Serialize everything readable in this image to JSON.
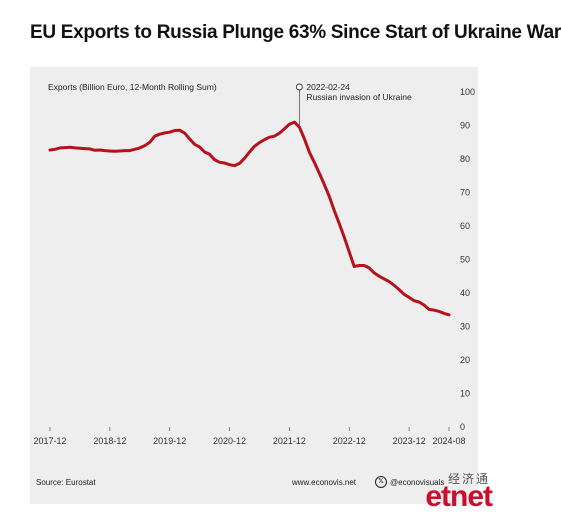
{
  "title": "EU Exports to Russia Plunge 63% Since Start of Ukraine War",
  "footer": {
    "source": "Source: Eurostat",
    "site": "www.econovis.net",
    "handle": "@econovisuals",
    "x_icon": "x-logo-icon"
  },
  "watermark": {
    "top_text": "经济通",
    "logo_text": "etnet",
    "color": "#c8102e"
  },
  "chart_data": {
    "type": "line",
    "ylabel": "Exports (Billion Euro, 12-Month Rolling Sum)",
    "ylim": [
      0,
      100
    ],
    "yticks": [
      0,
      10,
      20,
      30,
      40,
      50,
      60,
      70,
      80,
      90,
      100
    ],
    "xlim": [
      "2017-12",
      "2024-08"
    ],
    "xtick_labels": [
      "2017-12",
      "2018-12",
      "2019-12",
      "2020-12",
      "2021-12",
      "2022-12",
      "2023-12",
      "2024-08"
    ],
    "grid": false,
    "line_color": "#b5121b",
    "annotation": {
      "x": "2022-02",
      "date_label": "2022-02-24",
      "text": "Russian invasion of Ukraine"
    },
    "series": [
      {
        "values": [
          {
            "x": "2017-12",
            "y": 82.7
          },
          {
            "x": "2018-01",
            "y": 82.9
          },
          {
            "x": "2018-02",
            "y": 83.3
          },
          {
            "x": "2018-03",
            "y": 83.4
          },
          {
            "x": "2018-04",
            "y": 83.5
          },
          {
            "x": "2018-05",
            "y": 83.3
          },
          {
            "x": "2018-06",
            "y": 83.2
          },
          {
            "x": "2018-07",
            "y": 83.1
          },
          {
            "x": "2018-08",
            "y": 83.0
          },
          {
            "x": "2018-09",
            "y": 82.6
          },
          {
            "x": "2018-10",
            "y": 82.7
          },
          {
            "x": "2018-11",
            "y": 82.5
          },
          {
            "x": "2018-12",
            "y": 82.4
          },
          {
            "x": "2019-01",
            "y": 82.3
          },
          {
            "x": "2019-02",
            "y": 82.4
          },
          {
            "x": "2019-03",
            "y": 82.5
          },
          {
            "x": "2019-04",
            "y": 82.5
          },
          {
            "x": "2019-05",
            "y": 82.9
          },
          {
            "x": "2019-06",
            "y": 83.3
          },
          {
            "x": "2019-07",
            "y": 84.0
          },
          {
            "x": "2019-08",
            "y": 85.0
          },
          {
            "x": "2019-09",
            "y": 86.8
          },
          {
            "x": "2019-10",
            "y": 87.4
          },
          {
            "x": "2019-11",
            "y": 87.8
          },
          {
            "x": "2019-12",
            "y": 88.0
          },
          {
            "x": "2020-01",
            "y": 88.5
          },
          {
            "x": "2020-02",
            "y": 88.6
          },
          {
            "x": "2020-03",
            "y": 87.7
          },
          {
            "x": "2020-04",
            "y": 86.0
          },
          {
            "x": "2020-05",
            "y": 84.4
          },
          {
            "x": "2020-06",
            "y": 83.6
          },
          {
            "x": "2020-07",
            "y": 82.1
          },
          {
            "x": "2020-08",
            "y": 81.4
          },
          {
            "x": "2020-09",
            "y": 79.8
          },
          {
            "x": "2020-10",
            "y": 79.0
          },
          {
            "x": "2020-11",
            "y": 78.8
          },
          {
            "x": "2020-12",
            "y": 78.3
          },
          {
            "x": "2021-01",
            "y": 78.0
          },
          {
            "x": "2021-02",
            "y": 78.7
          },
          {
            "x": "2021-03",
            "y": 80.2
          },
          {
            "x": "2021-04",
            "y": 82.1
          },
          {
            "x": "2021-05",
            "y": 83.8
          },
          {
            "x": "2021-06",
            "y": 84.9
          },
          {
            "x": "2021-07",
            "y": 85.8
          },
          {
            "x": "2021-08",
            "y": 86.5
          },
          {
            "x": "2021-09",
            "y": 86.8
          },
          {
            "x": "2021-10",
            "y": 87.7
          },
          {
            "x": "2021-11",
            "y": 89.0
          },
          {
            "x": "2021-12",
            "y": 90.4
          },
          {
            "x": "2022-01",
            "y": 91.0
          },
          {
            "x": "2022-02",
            "y": 89.5
          },
          {
            "x": "2022-03",
            "y": 86.0
          },
          {
            "x": "2022-04",
            "y": 82.0
          },
          {
            "x": "2022-05",
            "y": 79.0
          },
          {
            "x": "2022-06",
            "y": 75.8
          },
          {
            "x": "2022-07",
            "y": 72.4
          },
          {
            "x": "2022-08",
            "y": 68.8
          },
          {
            "x": "2022-09",
            "y": 64.6
          },
          {
            "x": "2022-10",
            "y": 60.7
          },
          {
            "x": "2022-11",
            "y": 56.6
          },
          {
            "x": "2022-12",
            "y": 52.2
          },
          {
            "x": "2023-01",
            "y": 47.9
          },
          {
            "x": "2023-02",
            "y": 48.2
          },
          {
            "x": "2023-03",
            "y": 48.2
          },
          {
            "x": "2023-04",
            "y": 47.5
          },
          {
            "x": "2023-05",
            "y": 46.0
          },
          {
            "x": "2023-06",
            "y": 45.0
          },
          {
            "x": "2023-07",
            "y": 44.2
          },
          {
            "x": "2023-08",
            "y": 43.4
          },
          {
            "x": "2023-09",
            "y": 42.3
          },
          {
            "x": "2023-10",
            "y": 41.0
          },
          {
            "x": "2023-11",
            "y": 39.6
          },
          {
            "x": "2023-12",
            "y": 38.7
          },
          {
            "x": "2024-01",
            "y": 37.7
          },
          {
            "x": "2024-02",
            "y": 37.3
          },
          {
            "x": "2024-03",
            "y": 36.4
          },
          {
            "x": "2024-04",
            "y": 35.1
          },
          {
            "x": "2024-05",
            "y": 34.9
          },
          {
            "x": "2024-06",
            "y": 34.5
          },
          {
            "x": "2024-07",
            "y": 33.9
          },
          {
            "x": "2024-08",
            "y": 33.5
          }
        ]
      }
    ]
  }
}
